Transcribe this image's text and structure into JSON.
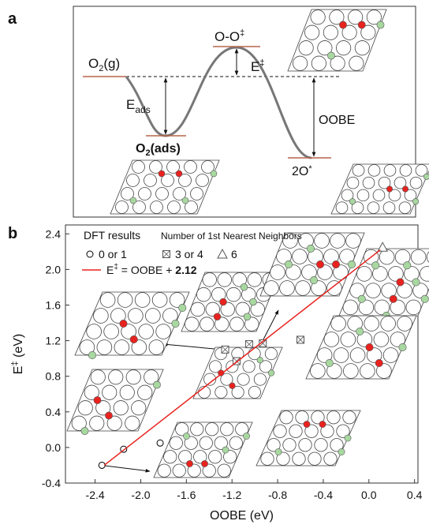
{
  "panel_a": {
    "label": "a",
    "o2_gas": [
      "O",
      "2",
      "(g)"
    ],
    "transition": [
      "O-O",
      "‡"
    ],
    "barrier": [
      "E",
      "‡"
    ],
    "adsorption": [
      "E",
      "ads"
    ],
    "o2_ads": [
      "O",
      "2",
      "(ads)"
    ],
    "oobe": "OOBE",
    "dissociated": [
      "2O",
      "*"
    ]
  },
  "chart_data": {
    "type": "scatter",
    "panel_label": "b",
    "xlabel": "OOBE  (eV)",
    "ylabel": [
      "E",
      "‡",
      " (eV)"
    ],
    "xlim": [
      -2.66,
      0.43
    ],
    "ylim": [
      -0.4,
      2.5
    ],
    "xticks": [
      -2.4,
      {
        "value": -2,
        "label": "-2.0"
      },
      -1.6,
      -1.2,
      -0.8,
      -0.4,
      {
        "value": 0,
        "label": "0.0"
      },
      0.4
    ],
    "yticks": [
      -0.4,
      {
        "value": 0,
        "label": "0.0"
      },
      0.4,
      0.8,
      1.2,
      1.6,
      {
        "value": 2,
        "label": "2.0"
      },
      2.4
    ],
    "legend_title": "DFT results",
    "legend_subtitle": "Number of 1st Nearest Neighbors",
    "series": [
      {
        "name": "0 or 1",
        "marker": "circle",
        "color": "#000000",
        "x": [
          -2.34,
          -2.15,
          -1.83
        ],
        "values": [
          -0.2,
          -0.02,
          0.05
        ]
      },
      {
        "name": "3 or 4",
        "marker": "square-x",
        "color": "#555555",
        "x": [
          -1.26,
          -1.16,
          -1.05,
          -0.93,
          -0.6
        ],
        "values": [
          1.1,
          0.97,
          1.16,
          1.17,
          1.21
        ]
      },
      {
        "name": "6",
        "marker": "triangle",
        "color": "#555555",
        "x": [
          0.12
        ],
        "values": [
          2.25
        ]
      },
      {
        "name": [
          "E",
          "‡",
          " = OOBE + ",
          "2.12"
        ],
        "marker": "line",
        "color": "#e8231f",
        "x": [
          -2.32,
          0.1
        ],
        "values": [
          -0.2,
          2.22
        ]
      }
    ]
  }
}
